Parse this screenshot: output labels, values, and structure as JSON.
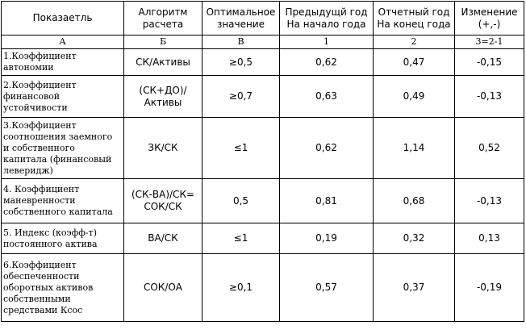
{
  "headers": {
    "indicator": "Показаетль",
    "algorithm": "Алгоритм расчета",
    "optimal": "Оптимальное значение",
    "previous": "Предыдущй год На начало года",
    "current": "Отчетный год На конец года",
    "change": "Изменение (+,-)"
  },
  "letters": {
    "a": "А",
    "b": "Б",
    "v": "В",
    "c1": "1",
    "c2": "2",
    "c3": "3=2-1"
  },
  "rows": [
    {
      "name": "1.Коэффициент автономии",
      "algorithm": "СК/Активы",
      "optimal": "≥0,5",
      "previous": "0,62",
      "current": "0,47",
      "change": "-0,15"
    },
    {
      "name": "2.Коэффициент финансовой устойчивости",
      "algorithm": "(СК+ДО)/Активы",
      "optimal": "≥0,7",
      "previous": "0,63",
      "current": "0,49",
      "change": "-0,13"
    },
    {
      "name": "3.Коэффициент соотношения заемного и собственного капитала (финансовый леверидж)",
      "algorithm": "ЗК/СК",
      "optimal": "≤1",
      "previous": "0,62",
      "current": "1,14",
      "change": "0,52"
    },
    {
      "name": "4. Коэффициент маневренности собственного капитала",
      "algorithm": "(СК-ВА)/СК= СОК/СК",
      "optimal": "0,5",
      "previous": "0,81",
      "current": "0,68",
      "change": "-0,13"
    },
    {
      "name": "5. Индекс (коэфф-т) постоянного актива",
      "algorithm": "ВА/СК",
      "optimal": "≤1",
      "previous": "0,19",
      "current": "0,32",
      "change": "0,13"
    },
    {
      "name": "6.Коэффициент обеспеченности оборотных активов собственными средствами Ксос",
      "algorithm": "СОК/ОА",
      "optimal": "≥0,1",
      "previous": "0,57",
      "current": "0,37",
      "change": "-0,19"
    }
  ]
}
